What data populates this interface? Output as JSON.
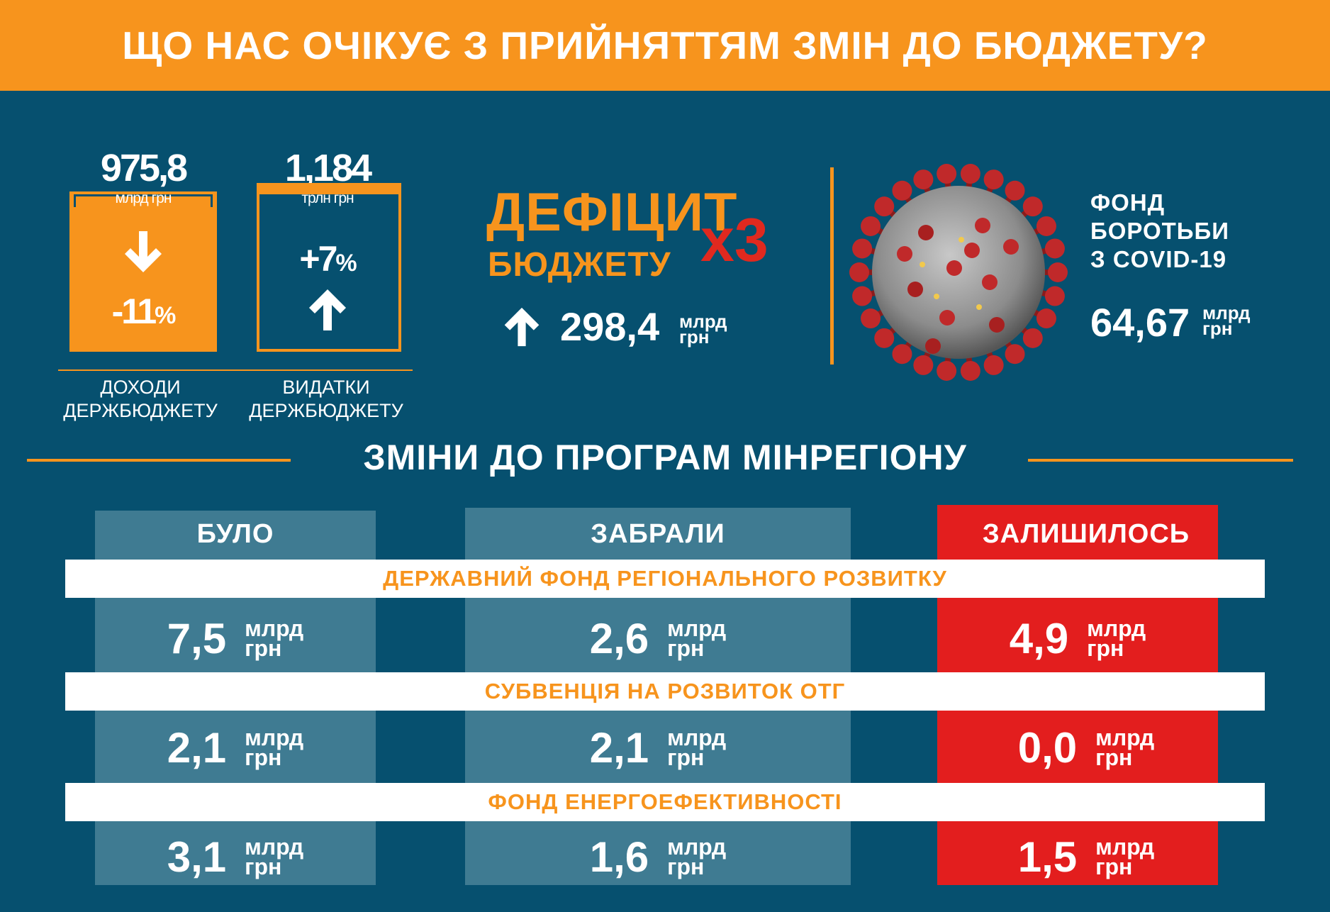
{
  "header": {
    "title": "ЩО НАС ОЧІКУЄ З ПРИЙНЯТТЯМ ЗМІН ДО БЮДЖЕТУ?"
  },
  "revenue": {
    "value": "975,8",
    "unit": "млрд грн",
    "change": "-11",
    "percent_sign": "%",
    "arrow": "down",
    "caption_line1": "ДОХОДИ",
    "caption_line2": "ДЕРЖБЮДЖЕТУ"
  },
  "expenses": {
    "value": "1,184",
    "unit": "трлн грн",
    "change": "+7",
    "percent_sign": "%",
    "arrow": "up",
    "caption_line1": "ВИДАТКИ",
    "caption_line2": "ДЕРЖБЮДЖЕТУ"
  },
  "deficit": {
    "line1": "ДЕФІЦИТ",
    "line2": "БЮДЖЕТУ",
    "multiplier": "х3",
    "value": "298,4",
    "unit_line1": "млрд",
    "unit_line2": "грн"
  },
  "covid_fund": {
    "line1": "ФОНД",
    "line2": "БОРОТЬБИ",
    "line3": "З COVID-19",
    "value": "64,67",
    "unit_line1": "млрд",
    "unit_line2": "грн"
  },
  "section": {
    "title": "ЗМІНИ ДО ПРОГРАМ МІНРЕГІОНУ"
  },
  "columns": [
    "БУЛО",
    "ЗАБРАЛИ",
    "ЗАЛИШИЛОСЬ"
  ],
  "programs": [
    {
      "name": "ДЕРЖАВНИЙ ФОНД РЕГІОНАЛЬНОГО РОЗВИТКУ",
      "was": "7,5",
      "taken": "2,6",
      "left": "4,9"
    },
    {
      "name": "СУБВЕНЦІЯ НА РОЗВИТОК ОТГ",
      "was": "2,1",
      "taken": "2,1",
      "left": "0,0"
    },
    {
      "name": "ФОНД ЕНЕРГОЕФЕКТИВНОСТІ",
      "was": "3,1",
      "taken": "1,6",
      "left": "1,5"
    }
  ],
  "unit": {
    "line1": "млрд",
    "line2": "грн"
  },
  "colors": {
    "background": "#06506f",
    "accent": "#f7941d",
    "column": "#3f7b92",
    "remaining": "#e31e1e",
    "virus": "#c0292a"
  },
  "icons": [
    "arrow-down-icon",
    "arrow-up-icon",
    "coronavirus-icon"
  ]
}
